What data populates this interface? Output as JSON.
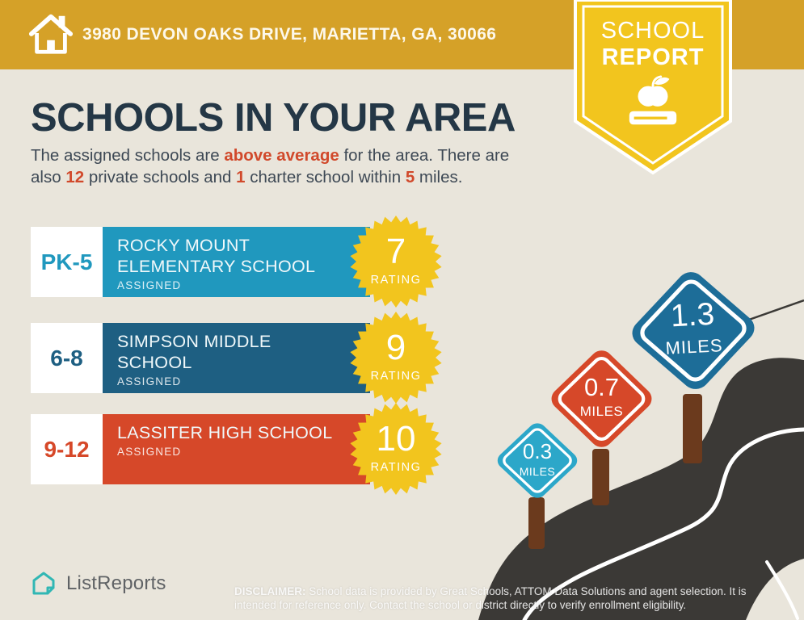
{
  "header": {
    "address": "3980 DEVON OAKS DRIVE, MARIETTA, GA, 30066"
  },
  "badge": {
    "line1": "SCHOOL",
    "line2": "REPORT"
  },
  "title": "SCHOOLS IN YOUR AREA",
  "intro": {
    "segments": [
      {
        "text": "The assigned schools are ",
        "em": false
      },
      {
        "text": "above average",
        "em": true
      },
      {
        "text": " for the area. There are",
        "em": false
      },
      {
        "br": true
      },
      {
        "text": "also ",
        "em": false
      },
      {
        "text": "12",
        "em": true
      },
      {
        "text": " private schools and ",
        "em": false
      },
      {
        "text": "1",
        "em": true
      },
      {
        "text": " charter school within ",
        "em": false
      },
      {
        "text": "5",
        "em": true
      },
      {
        "text": " miles.",
        "em": false
      }
    ]
  },
  "schools": [
    {
      "grades": "PK-5",
      "name": "ROCKY MOUNT\nELEMENTARY SCHOOL",
      "status": "ASSIGNED",
      "rating": "7",
      "rating_label": "RATING",
      "color": "#2098BE"
    },
    {
      "grades": "6-8",
      "name": "SIMPSON MIDDLE\nSCHOOL",
      "status": "ASSIGNED",
      "rating": "9",
      "rating_label": "RATING",
      "color": "#1E5F82"
    },
    {
      "grades": "9-12",
      "name": "LASSITER HIGH SCHOOL",
      "status": "ASSIGNED",
      "rating": "10",
      "rating_label": "RATING",
      "color": "#D64829"
    }
  ],
  "distance_signs": [
    {
      "value": "0.3",
      "unit": "MILES",
      "color": "#2CA7C9"
    },
    {
      "value": "0.7",
      "unit": "MILES",
      "color": "#D64829"
    },
    {
      "value": "1.3",
      "unit": "MILES",
      "color": "#1D6D98"
    }
  ],
  "footer": {
    "brand": "ListReports",
    "disclaimer_label": "DISCLAIMER:",
    "disclaimer_text": " School data is provided by Great Schools, ATTOM Data Solutions and agent selection. It is intended for reference only. Contact the school or district directly to verify enrollment eligibility."
  },
  "colors": {
    "header-gold": "#D5A128",
    "badge-yellow": "#F2C51E",
    "background": "#E9E5DB",
    "title-navy": "#243746",
    "body-text": "#3E4955",
    "accent-red": "#D1492B",
    "row-teal": "#2098BE",
    "row-blue": "#1E5F82",
    "row-red": "#D64829",
    "sign-cyan": "#2CA7C9",
    "sign-blue": "#1D6D98",
    "post-brown": "#6B3A1D",
    "road-dark": "#3B3936",
    "logo-teal": "#31B7B4",
    "footer-text": "#5F6265"
  }
}
